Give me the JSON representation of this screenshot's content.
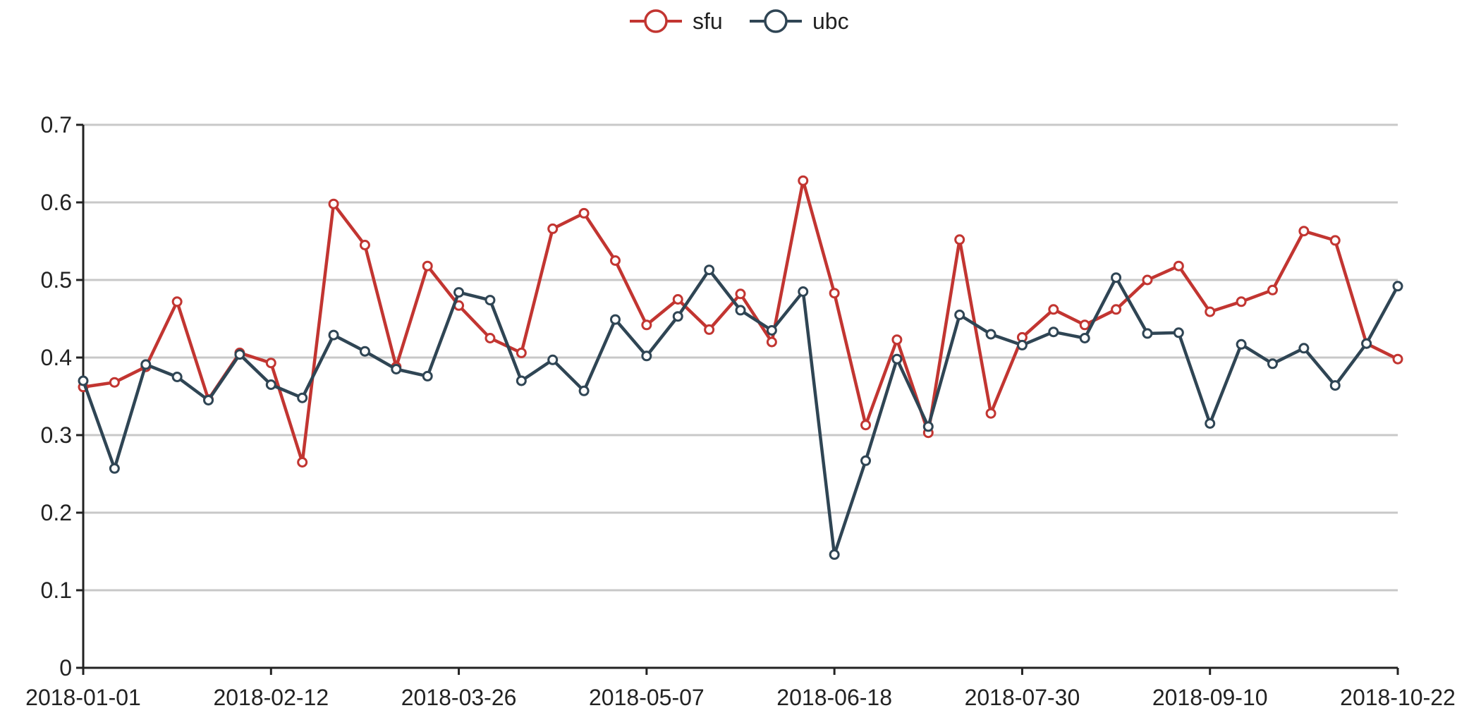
{
  "chart_data": {
    "type": "line",
    "title": "",
    "xlabel": "",
    "ylabel": "",
    "ylim": [
      0,
      0.7
    ],
    "y_ticks": [
      "0",
      "0.1",
      "0.2",
      "0.3",
      "0.4",
      "0.5",
      "0.6",
      "0.7"
    ],
    "x_tick_labels": [
      "2018-01-01",
      "2018-02-12",
      "2018-03-26",
      "2018-05-07",
      "2018-06-18",
      "2018-07-30",
      "2018-09-10",
      "2018-10-22"
    ],
    "x": [
      "2018-01-01",
      "2018-01-08",
      "2018-01-15",
      "2018-01-22",
      "2018-01-29",
      "2018-02-05",
      "2018-02-12",
      "2018-02-19",
      "2018-02-26",
      "2018-03-05",
      "2018-03-12",
      "2018-03-19",
      "2018-03-26",
      "2018-04-02",
      "2018-04-09",
      "2018-04-16",
      "2018-04-23",
      "2018-04-30",
      "2018-05-07",
      "2018-05-14",
      "2018-05-21",
      "2018-05-28",
      "2018-06-04",
      "2018-06-11",
      "2018-06-18",
      "2018-06-25",
      "2018-07-02",
      "2018-07-09",
      "2018-07-16",
      "2018-07-23",
      "2018-07-30",
      "2018-08-06",
      "2018-08-13",
      "2018-08-20",
      "2018-08-27",
      "2018-09-03",
      "2018-09-10",
      "2018-09-17",
      "2018-09-24",
      "2018-10-01",
      "2018-10-08",
      "2018-10-15",
      "2018-10-22"
    ],
    "grid": true,
    "legend_position": "top-center",
    "series": [
      {
        "name": "sfu",
        "color": "#c23531",
        "values": [
          0.362,
          0.368,
          0.388,
          0.472,
          0.346,
          0.406,
          0.393,
          0.265,
          0.598,
          0.545,
          0.388,
          0.518,
          0.467,
          0.425,
          0.406,
          0.566,
          0.586,
          0.525,
          0.442,
          0.475,
          0.436,
          0.482,
          0.42,
          0.628,
          0.483,
          0.313,
          0.423,
          0.303,
          0.552,
          0.328,
          0.426,
          0.462,
          0.442,
          0.462,
          0.5,
          0.518,
          0.459,
          0.472,
          0.487,
          0.563,
          0.551,
          0.418,
          0.398
        ]
      },
      {
        "name": "ubc",
        "color": "#2f4554",
        "values": [
          0.37,
          0.257,
          0.391,
          0.375,
          0.345,
          0.404,
          0.365,
          0.348,
          0.429,
          0.408,
          0.385,
          0.376,
          0.484,
          0.474,
          0.37,
          0.397,
          0.357,
          0.449,
          0.402,
          0.453,
          0.513,
          0.461,
          0.435,
          0.485,
          0.146,
          0.267,
          0.398,
          0.311,
          0.455,
          0.43,
          0.416,
          0.433,
          0.425,
          0.503,
          0.431,
          0.432,
          0.315,
          0.417,
          0.392,
          0.412,
          0.364,
          0.418,
          0.492
        ]
      }
    ]
  }
}
